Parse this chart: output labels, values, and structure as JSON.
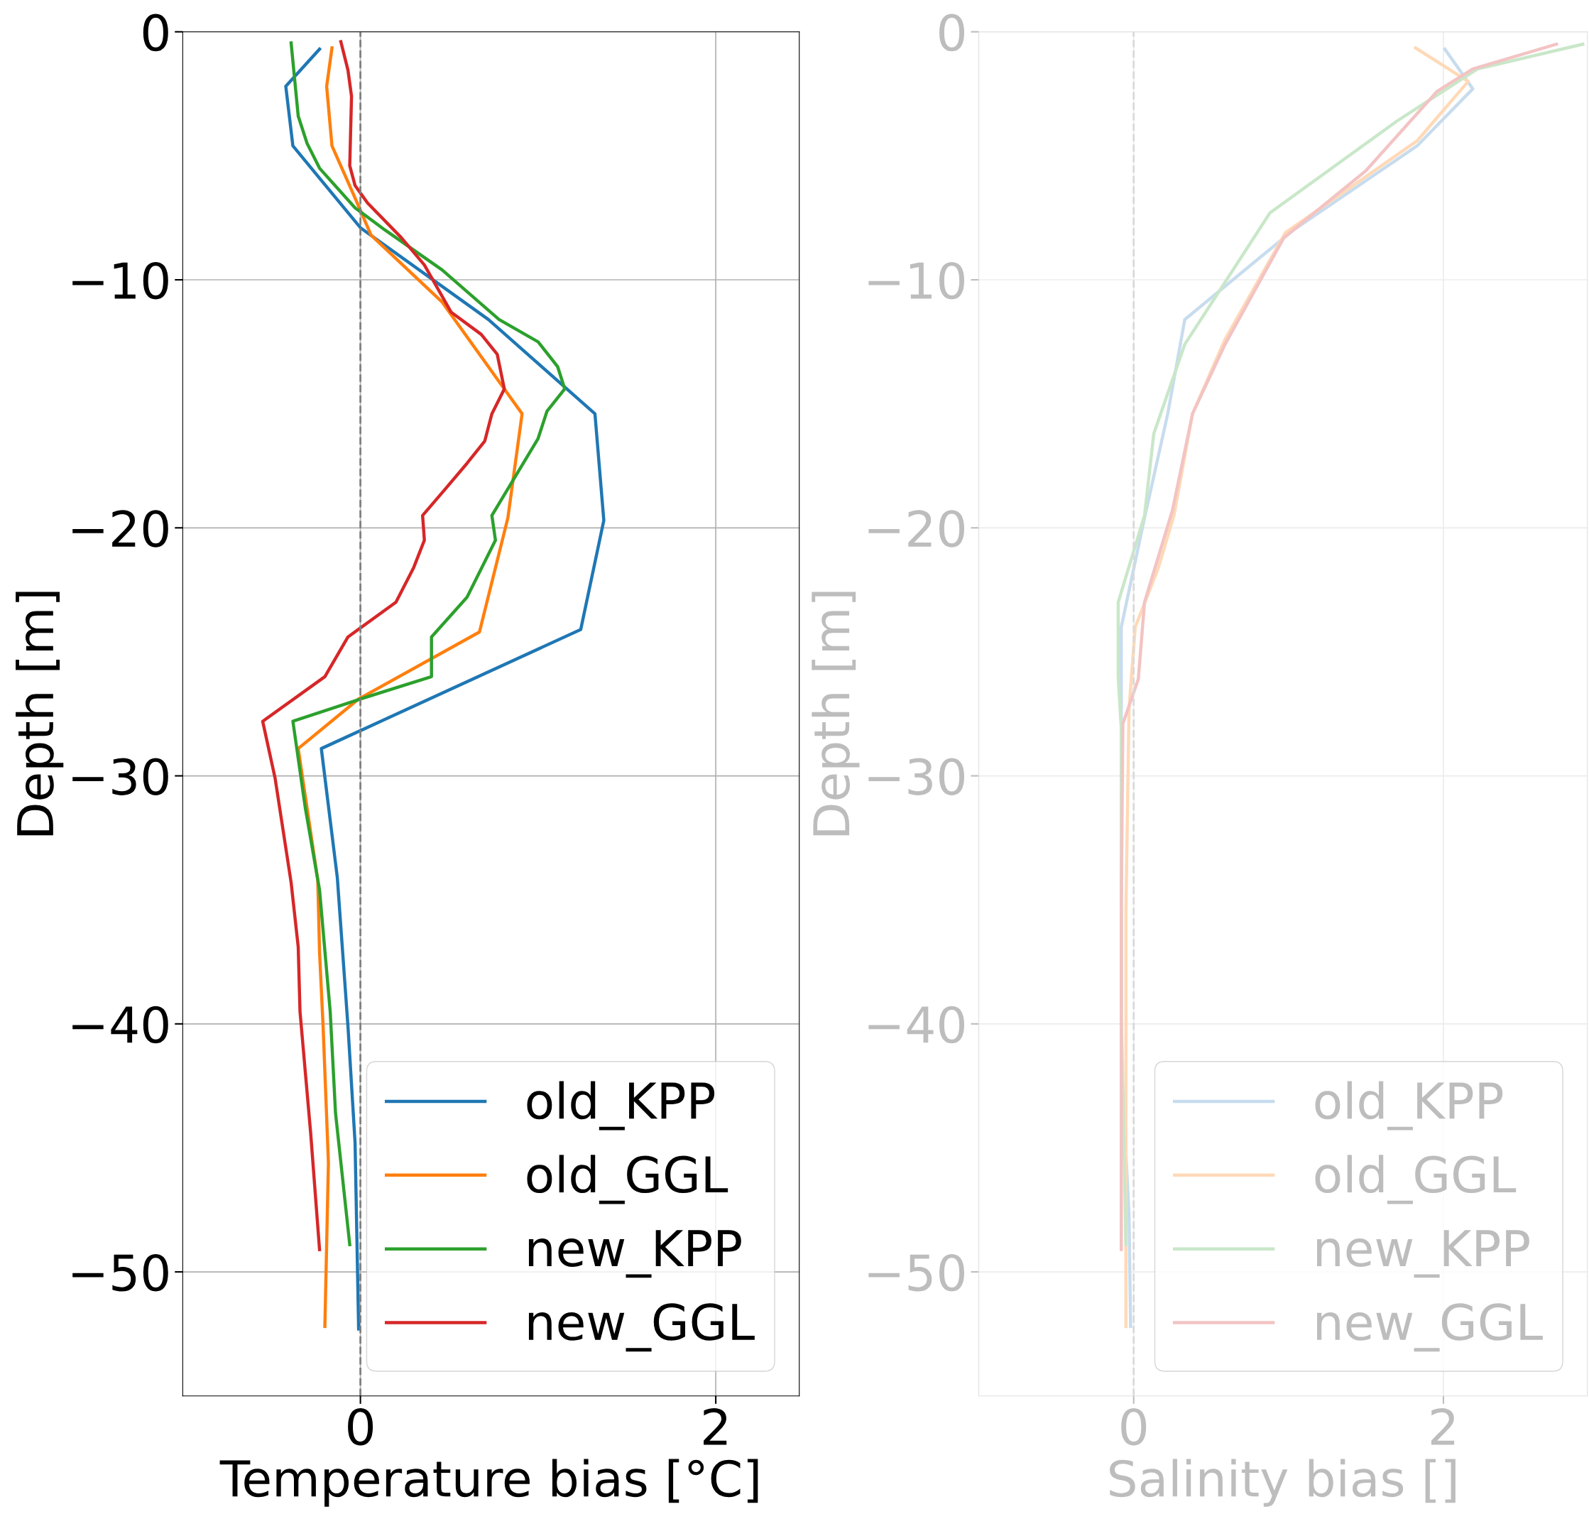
{
  "chart_data": [
    {
      "type": "line",
      "xlabel": "Temperature bias [°C]",
      "ylabel": "Depth [m]",
      "xlim": [
        -1,
        2.47
      ],
      "ylim": [
        -55,
        0
      ],
      "xticks": [
        0,
        2
      ],
      "yticks": [
        0,
        -10,
        -20,
        -30,
        -40,
        -50
      ],
      "grid": true,
      "legend": "bottom right",
      "ref_lines": [
        {
          "axis": "x",
          "value": 0,
          "color": "#808080",
          "line_style": "dashed"
        }
      ],
      "series": [
        {
          "name": "old_KPP",
          "color": "#1f77b4",
          "x": [
            -0.23,
            -0.42,
            -0.38,
            0,
            0.72,
            1.32,
            1.37,
            1.24,
            -0.22,
            -0.13,
            -0.07,
            -0.03,
            -0.01
          ],
          "values": [
            -0.7,
            -2.2,
            -4.6,
            -7.9,
            -11.6,
            -15.4,
            -19.7,
            -24.1,
            -28.9,
            -34.1,
            -40.1,
            -44.8,
            -52.3
          ]
        },
        {
          "name": "old_GGL",
          "color": "#ff7f0e",
          "x": [
            -0.16,
            -0.19,
            -0.16,
            -0.03,
            0.06,
            0.46,
            0.81,
            0.91,
            0.83,
            0.67,
            -0.01,
            -0.35,
            -0.24,
            -0.23,
            -0.21,
            -0.18,
            -0.2
          ],
          "values": [
            -0.65,
            -2.2,
            -4.6,
            -6.7,
            -8.2,
            -10.9,
            -14.4,
            -15.4,
            -19.6,
            -24.2,
            -26.9,
            -28.9,
            -34.2,
            -37.1,
            -40.1,
            -45.6,
            -52.2
          ]
        },
        {
          "name": "new_KPP",
          "color": "#2ca02c",
          "x": [
            -0.39,
            -0.35,
            -0.3,
            -0.23,
            -0.03,
            0.14,
            0.46,
            0.78,
            1.0,
            1.11,
            1.15,
            1.05,
            1.0,
            0.74,
            0.76,
            0.6,
            0.4,
            0.4,
            0,
            -0.38,
            -0.31,
            -0.23,
            -0.17,
            -0.14,
            -0.06
          ],
          "values": [
            -0.45,
            -3.4,
            -4.5,
            -5.5,
            -7.1,
            -8.0,
            -9.6,
            -11.6,
            -12.5,
            -13.5,
            -14.4,
            -15.3,
            -16.4,
            -19.5,
            -20.5,
            -22.8,
            -24.4,
            -26.0,
            -26.9,
            -27.8,
            -31.3,
            -34.6,
            -39.5,
            -43.6,
            -48.9
          ]
        },
        {
          "name": "new_GGL",
          "color": "#d62728",
          "x": [
            -0.11,
            -0.07,
            -0.05,
            -0.06,
            -0.03,
            0.04,
            0.23,
            0.36,
            0.51,
            0.68,
            0.77,
            0.81,
            0.74,
            0.7,
            0.6,
            0.47,
            0.35,
            0.36,
            0.3,
            0.2,
            -0.07,
            -0.2,
            -0.55,
            -0.48,
            -0.39,
            -0.35,
            -0.34,
            -0.28,
            -0.23
          ],
          "values": [
            -0.4,
            -1.55,
            -2.6,
            -5.4,
            -6.2,
            -6.9,
            -8.3,
            -9.4,
            -11.3,
            -12.2,
            -13.0,
            -14.4,
            -15.4,
            -16.5,
            -17.4,
            -18.5,
            -19.5,
            -20.5,
            -21.6,
            -23.0,
            -24.4,
            -26.0,
            -27.8,
            -30.1,
            -34.3,
            -36.9,
            -39.5,
            -44.4,
            -49.1
          ]
        }
      ]
    },
    {
      "type": "line",
      "xlabel": "Salinity bias []",
      "ylabel": "Depth [m]",
      "xlim": [
        -1,
        2.93
      ],
      "ylim": [
        -55,
        0
      ],
      "xticks": [
        0,
        2
      ],
      "yticks": [
        0,
        -10,
        -20,
        -30,
        -40,
        -50
      ],
      "grid": true,
      "legend": "bottom right",
      "ref_lines": [
        {
          "axis": "x",
          "value": 0,
          "color": "#d9d9d9",
          "line_style": "dashed"
        }
      ],
      "series": [
        {
          "name": "old_KPP",
          "color": "#c7dcee",
          "x": [
            2.01,
            2.19,
            1.83,
            1.03,
            0.33,
            0.22,
            0.07,
            -0.08,
            -0.08,
            -0.08,
            -0.08,
            -0.03,
            -0.02
          ],
          "values": [
            -0.7,
            -2.3,
            -4.6,
            -8.0,
            -11.6,
            -15.4,
            -19.6,
            -24.0,
            -27.3,
            -35.4,
            -41.6,
            -47.7,
            -52.2
          ]
        },
        {
          "name": "old_GGL",
          "color": "#ffd9b7",
          "x": [
            1.82,
            2.16,
            1.83,
            0.98,
            0.59,
            0.38,
            0.26,
            0.16,
            0.01,
            -0.03,
            -0.05,
            -0.05,
            -0.05
          ],
          "values": [
            -0.65,
            -2.0,
            -4.4,
            -8.1,
            -12.4,
            -15.4,
            -19.5,
            -21.6,
            -24.0,
            -27.3,
            -35.4,
            -45.6,
            -52.2
          ]
        },
        {
          "name": "new_KPP",
          "color": "#c9e7c9",
          "x": [
            2.9,
            2.22,
            1.7,
            0.88,
            0.33,
            0.13,
            0.07,
            -0.1,
            -0.1,
            -0.08,
            -0.08,
            -0.05
          ],
          "values": [
            -0.5,
            -1.5,
            -3.6,
            -7.3,
            -12.6,
            -16.2,
            -19.5,
            -23.0,
            -26.0,
            -28.1,
            -39.5,
            -48.9
          ]
        },
        {
          "name": "new_GGL",
          "color": "#f3c3c3",
          "x": [
            2.73,
            2.19,
            1.96,
            1.5,
            0.97,
            0.59,
            0.38,
            0.25,
            0.07,
            0.03,
            -0.07,
            -0.08,
            -0.08
          ],
          "values": [
            -0.5,
            -1.5,
            -2.4,
            -5.6,
            -8.3,
            -12.6,
            -15.4,
            -19.3,
            -23.0,
            -26.1,
            -27.9,
            -35.4,
            -49.1
          ]
        }
      ]
    }
  ]
}
